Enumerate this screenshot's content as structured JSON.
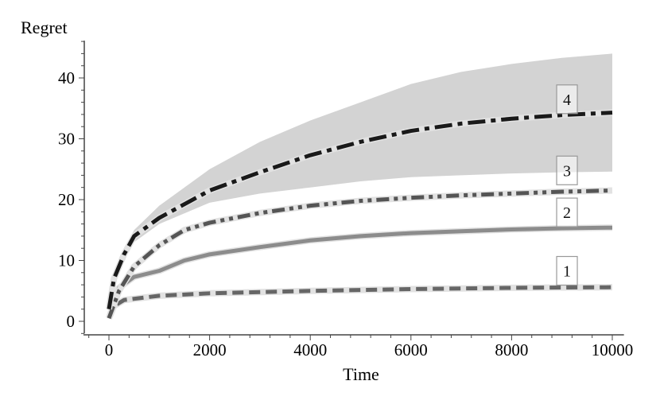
{
  "chart_data": {
    "type": "line",
    "title": "",
    "xlabel": "Time",
    "ylabel": "Regret",
    "xlim": [
      -500,
      10200
    ],
    "ylim": [
      -2,
      46
    ],
    "x_ticks": [
      0,
      2000,
      4000,
      6000,
      8000,
      10000
    ],
    "y_ticks": [
      0,
      10,
      20,
      30,
      40
    ],
    "grid": false,
    "legend": "inline boxed labels near right end",
    "band": {
      "series_label": "4",
      "color": "#d3d3d3",
      "x": [
        0,
        100,
        300,
        500,
        1000,
        2000,
        3000,
        4000,
        5000,
        6000,
        7000,
        8000,
        9000,
        10000
      ],
      "upper": [
        2,
        7.5,
        12,
        15,
        19,
        25,
        29.5,
        33,
        36,
        39,
        41,
        42.3,
        43.3,
        44
      ],
      "lower": [
        2,
        6.5,
        10,
        13,
        16,
        19.5,
        21,
        22,
        23,
        23.7,
        24,
        24.3,
        24.5,
        24.6
      ]
    },
    "series": [
      {
        "name": "1",
        "color": "#666666",
        "dash": "dashed",
        "x": [
          0,
          100,
          300,
          1000,
          2000,
          4000,
          6000,
          8000,
          10000
        ],
        "y": [
          0.5,
          2.5,
          3.5,
          4.2,
          4.6,
          5.0,
          5.3,
          5.5,
          5.6
        ],
        "label_at": [
          9100,
          8.3
        ]
      },
      {
        "name": "2",
        "color": "#8c8c8c",
        "dash": "solid",
        "x": [
          0,
          200,
          500,
          1000,
          1500,
          2000,
          3000,
          4000,
          5000,
          6000,
          7000,
          8000,
          9000,
          10000
        ],
        "y": [
          0.5,
          5.5,
          7.3,
          8.3,
          10,
          11,
          12.2,
          13.3,
          14,
          14.5,
          14.8,
          15.1,
          15.3,
          15.4
        ],
        "label_at": [
          9100,
          17.9
        ]
      },
      {
        "name": "3",
        "color": "#555555",
        "dash": "dash-dot-dot",
        "x": [
          0,
          200,
          500,
          1000,
          1500,
          2000,
          3000,
          4000,
          5000,
          6000,
          7000,
          8000,
          9000,
          10000
        ],
        "y": [
          0.5,
          5,
          9,
          12.5,
          15,
          16.2,
          17.8,
          19,
          19.8,
          20.3,
          20.7,
          21,
          21.3,
          21.5
        ],
        "label_at": [
          9100,
          24.8
        ]
      },
      {
        "name": "4",
        "color": "#1a1a1a",
        "dash": "dash-dot",
        "x": [
          0,
          100,
          300,
          500,
          1000,
          2000,
          3000,
          4000,
          5000,
          6000,
          7000,
          8000,
          9000,
          10000
        ],
        "y": [
          2,
          7,
          11,
          14,
          17,
          21.5,
          24.5,
          27.3,
          29.5,
          31.3,
          32.5,
          33.3,
          33.9,
          34.3
        ],
        "label_at": [
          9100,
          36.5
        ]
      }
    ]
  }
}
